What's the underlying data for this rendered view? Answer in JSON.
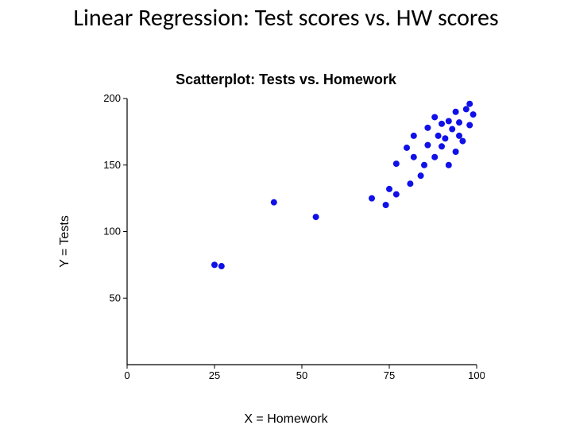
{
  "slide": {
    "title": "Linear Regression: Test scores vs. HW scores"
  },
  "chart": {
    "type": "scatter",
    "title": "Scatterplot: Tests vs. Homework",
    "x_label": "X = Homework",
    "y_label": "Y = Tests",
    "xlim": [
      0,
      100
    ],
    "ylim": [
      0,
      200
    ],
    "x_ticks": [
      0,
      25,
      50,
      75,
      100
    ],
    "y_ticks": [
      50,
      100,
      150,
      200
    ],
    "marker_color": "#1010e8",
    "marker_size": 4,
    "axis_color": "#000000",
    "background_color": "#ffffff",
    "tick_fontsize": 13,
    "label_fontsize": 16,
    "title_fontsize": 18,
    "points": [
      [
        25,
        75
      ],
      [
        27,
        74
      ],
      [
        42,
        122
      ],
      [
        54,
        111
      ],
      [
        70,
        125
      ],
      [
        74,
        120
      ],
      [
        75,
        132
      ],
      [
        77,
        128
      ],
      [
        77,
        151
      ],
      [
        80,
        163
      ],
      [
        81,
        136
      ],
      [
        82,
        156
      ],
      [
        82,
        172
      ],
      [
        84,
        142
      ],
      [
        85,
        150
      ],
      [
        86,
        165
      ],
      [
        86,
        178
      ],
      [
        88,
        156
      ],
      [
        88,
        186
      ],
      [
        89,
        172
      ],
      [
        90,
        164
      ],
      [
        90,
        181
      ],
      [
        91,
        170
      ],
      [
        92,
        150
      ],
      [
        92,
        183
      ],
      [
        93,
        177
      ],
      [
        94,
        160
      ],
      [
        94,
        190
      ],
      [
        95,
        182
      ],
      [
        95,
        172
      ],
      [
        96,
        168
      ],
      [
        97,
        192
      ],
      [
        98,
        180
      ],
      [
        98,
        196
      ],
      [
        99,
        188
      ]
    ]
  }
}
